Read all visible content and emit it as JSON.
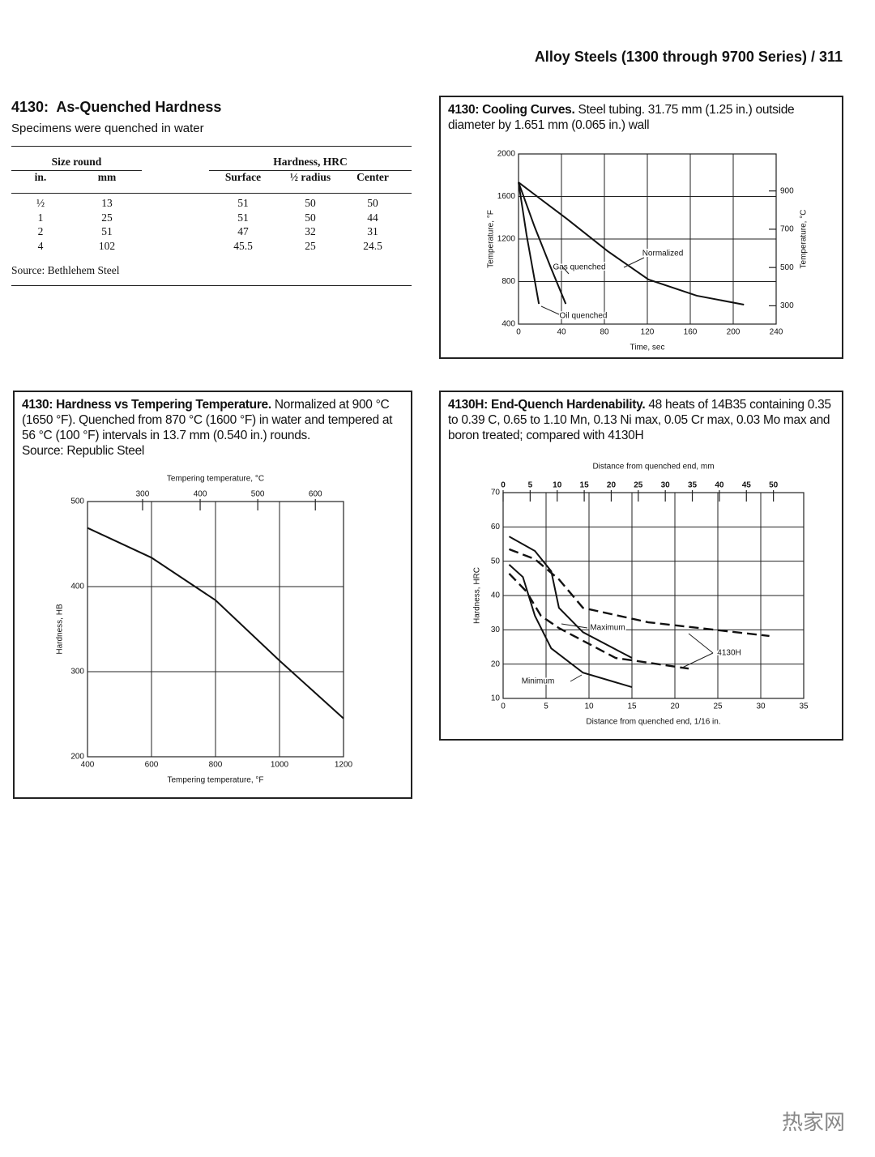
{
  "header": {
    "running_title": "Alloy Steels (1300 through 9700 Series) / 311"
  },
  "section": {
    "title": "4130:  As-Quenched Hardness",
    "subtitle": "Specimens were quenched in water"
  },
  "table": {
    "group_headers": [
      "Size round",
      "Hardness, HRC"
    ],
    "columns": [
      "in.",
      "mm",
      "Surface",
      "½ radius",
      "Center"
    ],
    "rows": [
      [
        "½",
        "13",
        "51",
        "50",
        "50"
      ],
      [
        "1",
        "25",
        "51",
        "50",
        "44"
      ],
      [
        "2",
        "51",
        "47",
        "32",
        "31"
      ],
      [
        "4",
        "102",
        "45.5",
        "25",
        "24.5"
      ]
    ],
    "source": "Source: Bethlehem Steel"
  },
  "chart_data": [
    {
      "type": "line",
      "title": "4130: Cooling Curves.",
      "description": "Steel tubing. 31.75 mm (1.25 in.) outside diameter by 1.651 mm (0.065 in.) wall",
      "x_label": "Time, sec",
      "y_label": "Temperature, °F",
      "y2_label": "Temperature, °C",
      "xlim": [
        0,
        240
      ],
      "xticks": [
        0,
        40,
        80,
        120,
        160,
        200,
        240
      ],
      "ylim": [
        400,
        2000
      ],
      "yticks": [
        400,
        800,
        1200,
        1600,
        2000
      ],
      "y2lim": [
        204.4,
        1093.3
      ],
      "y2ticks": [
        300,
        500,
        700,
        900
      ],
      "grid": true,
      "series": [
        {
          "name": "Normalized",
          "color": "#111111",
          "style": "solid",
          "x": [
            0,
            20,
            45,
            83,
            121,
            166,
            210
          ],
          "values": [
            1733,
            1580,
            1390,
            1086,
            819,
            667,
            583
          ]
        },
        {
          "name": "Gas quenched",
          "color": "#111111",
          "style": "solid",
          "x": [
            0,
            15,
            30,
            44
          ],
          "values": [
            1733,
            1314,
            933,
            590
          ]
        },
        {
          "name": "Oil quenched",
          "color": "#111111",
          "style": "solid",
          "x": [
            0,
            7.5,
            19
          ],
          "values": [
            1733,
            1238,
            590
          ]
        }
      ]
    },
    {
      "type": "line",
      "title": "4130: Hardness vs Tempering Temperature.",
      "description": "Normalized at 900 °C (1650 °F). Quenched from 870 °C (1600 °F) in water and tempered at 56 °C (100 °F) intervals in 13.7 mm (0.540 in.) rounds.",
      "source": "Source: Republic Steel",
      "x_label": "Tempering temperature, °F",
      "x2_label": "Tempering temperature, °C",
      "y_label": "Hardness, HB",
      "xlim": [
        400,
        1200
      ],
      "xticks": [
        400,
        600,
        800,
        1000,
        1200
      ],
      "x2lim": [
        204.4,
        648.9
      ],
      "x2ticks": [
        300,
        400,
        500,
        600
      ],
      "ylim": [
        200,
        500
      ],
      "yticks": [
        200,
        300,
        400,
        500
      ],
      "grid": true,
      "series": [
        {
          "color": "#111111",
          "style": "solid",
          "x": [
            400,
            600,
            800,
            1000,
            1200
          ],
          "values": [
            469,
            434,
            384,
            313,
            245
          ]
        }
      ]
    },
    {
      "type": "line",
      "title": "4130H: End-Quench Hardenability.",
      "description": "48 heats of 14B35 containing 0.35 to 0.39 C, 0.65 to 1.10 Mn, 0.13 Ni max, 0.05 Cr max, 0.03 Mo max and boron treated; compared with 4130H",
      "x_label": "Distance from quenched end, 1/16 in.",
      "x2_label": "Distance from quenched end, mm",
      "y_label": "Hardness, HRC",
      "xlim": [
        0,
        35
      ],
      "xticks": [
        0,
        5,
        10,
        15,
        20,
        25,
        30,
        35
      ],
      "x2lim": [
        0,
        55.6
      ],
      "x2ticks": [
        0,
        5,
        10,
        15,
        20,
        25,
        30,
        35,
        40,
        45,
        50
      ],
      "ylim": [
        10,
        70
      ],
      "yticks": [
        10,
        20,
        30,
        40,
        50,
        60,
        70
      ],
      "grid": true,
      "series": [
        {
          "color": "#111111",
          "style": "solid",
          "x": [
            0.7,
            3.7,
            5.6,
            6.5,
            9.3,
            15
          ],
          "values": [
            57.2,
            53,
            47.1,
            36.4,
            29.3,
            21.8
          ]
        },
        {
          "color": "#111111",
          "style": "dashed",
          "x": [
            0.7,
            3.7,
            6.5,
            9.3,
            16.9,
            31
          ],
          "values": [
            53.5,
            50.6,
            44.7,
            36.4,
            32.2,
            28.2
          ]
        },
        {
          "color": "#111111",
          "style": "solid",
          "x": [
            0.7,
            2.3,
            3.7,
            5.6,
            9.3,
            15
          ],
          "values": [
            49,
            45.4,
            34.1,
            24.6,
            17.5,
            13.3
          ]
        },
        {
          "color": "#111111",
          "style": "dashed",
          "x": [
            0.7,
            2.7,
            4.4,
            6.5,
            13.1,
            21.6
          ],
          "values": [
            46.4,
            41.2,
            34.1,
            30.5,
            21.8,
            18.7
          ]
        }
      ],
      "annotations": [
        "Maximum",
        "Minimum",
        "4130H"
      ]
    }
  ],
  "watermark": "热家网"
}
